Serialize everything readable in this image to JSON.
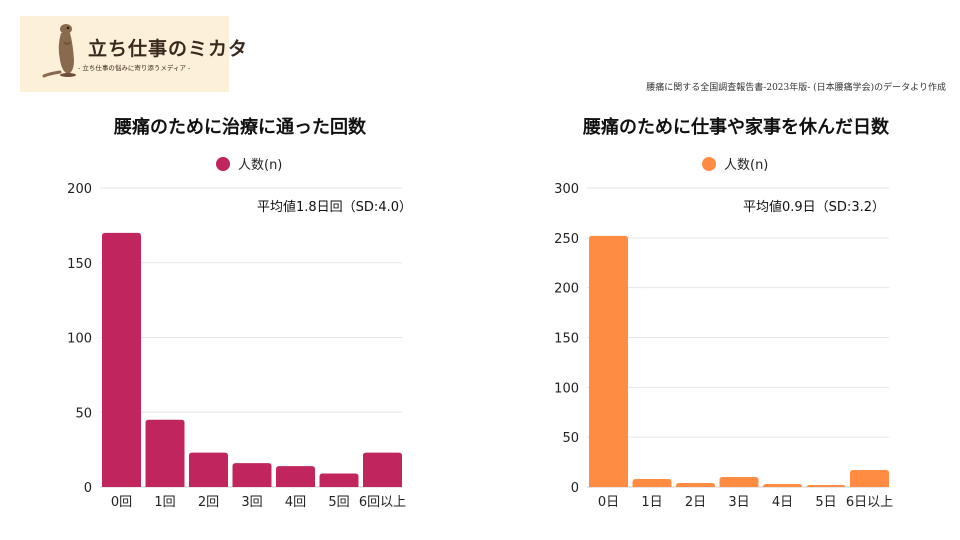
{
  "logo": {
    "title": "立ち仕事のミカタ",
    "subtitle": "- 立ち仕事の悩みに寄り添うメディア -"
  },
  "source_note": "腰痛に関する全国調査報告書-2023年版- (日本腰痛学会)のデータより作成",
  "chart_data": [
    {
      "type": "bar",
      "title": "腰痛のために治療に通った回数",
      "annotation": "平均値1.8日回（SD:4.0）",
      "categories": [
        "0回",
        "1回",
        "2回",
        "3回",
        "4回",
        "5回",
        "6回以上"
      ],
      "series": [
        {
          "name": "人数(n)",
          "values": [
            170,
            45,
            23,
            16,
            14,
            9,
            23
          ]
        }
      ],
      "color": "#c0265d",
      "ylim": [
        0,
        200
      ],
      "yticks": [
        0,
        50,
        100,
        150,
        200
      ],
      "grid": true,
      "legend_position": "top"
    },
    {
      "type": "bar",
      "title": "腰痛のために仕事や家事を休んだ日数",
      "annotation": "平均値0.9日（SD:3.2）",
      "categories": [
        "0日",
        "1日",
        "2日",
        "3日",
        "4日",
        "5日",
        "6日以上"
      ],
      "series": [
        {
          "name": "人数(n)",
          "values": [
            252,
            8,
            4,
            10,
            3,
            2,
            17
          ]
        }
      ],
      "color": "#ff8c42",
      "ylim": [
        0,
        300
      ],
      "yticks": [
        0,
        50,
        100,
        150,
        200,
        250,
        300
      ],
      "grid": true,
      "legend_position": "top"
    }
  ]
}
